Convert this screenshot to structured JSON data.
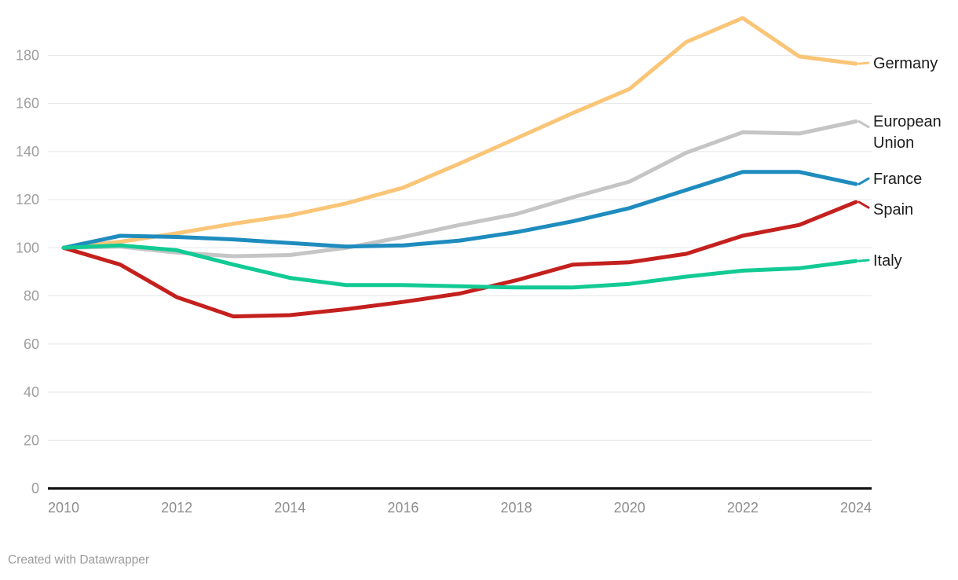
{
  "chart_data": {
    "type": "line",
    "title": "",
    "xlabel": "",
    "ylabel": "",
    "x": [
      2010,
      2011,
      2012,
      2013,
      2014,
      2015,
      2016,
      2017,
      2018,
      2019,
      2020,
      2021,
      2022,
      2023,
      2024
    ],
    "series": [
      {
        "name": "Germany",
        "color": "#FAC577",
        "label_lines": [
          "Germany"
        ],
        "values": [
          100,
          102.5,
          106,
          110,
          113.5,
          118.5,
          125,
          135,
          145.5,
          156,
          166,
          185.5,
          195.5,
          179.5,
          176.5
        ]
      },
      {
        "name": "European Union",
        "color": "#C5C5C5",
        "label_lines": [
          "European",
          "Union"
        ],
        "values": [
          100,
          100.5,
          98,
          96.5,
          97,
          100,
          104.5,
          109.5,
          114,
          121,
          127.5,
          139.5,
          148,
          147.5,
          152.5
        ]
      },
      {
        "name": "France",
        "color": "#1E8CBE",
        "label_lines": [
          "France"
        ],
        "values": [
          100,
          105,
          104.5,
          103.5,
          102,
          100.5,
          101,
          103,
          106.5,
          111,
          116.5,
          124,
          131.5,
          131.5,
          126.5
        ]
      },
      {
        "name": "Spain",
        "color": "#C4201D",
        "label_lines": [
          "Spain"
        ],
        "values": [
          100,
          93,
          79.5,
          71.5,
          72,
          74.5,
          77.5,
          81,
          86.5,
          93,
          94,
          97.5,
          105,
          109.5,
          119
        ]
      },
      {
        "name": "Italy",
        "color": "#12CA94",
        "label_lines": [
          "Italy"
        ],
        "values": [
          100,
          101,
          99,
          93,
          87.5,
          84.5,
          84.5,
          84,
          83.5,
          83.5,
          85,
          88,
          90.5,
          91.5,
          94.5
        ]
      }
    ],
    "y_ticks": [
      0,
      20,
      40,
      60,
      80,
      100,
      120,
      140,
      160,
      180
    ],
    "x_ticks": [
      2010,
      2012,
      2014,
      2016,
      2018,
      2020,
      2022,
      2024
    ],
    "ylim": [
      0,
      196
    ],
    "grid": true,
    "legend_position": "right-direct-labels"
  },
  "footer": {
    "credit": "Created with Datawrapper"
  }
}
